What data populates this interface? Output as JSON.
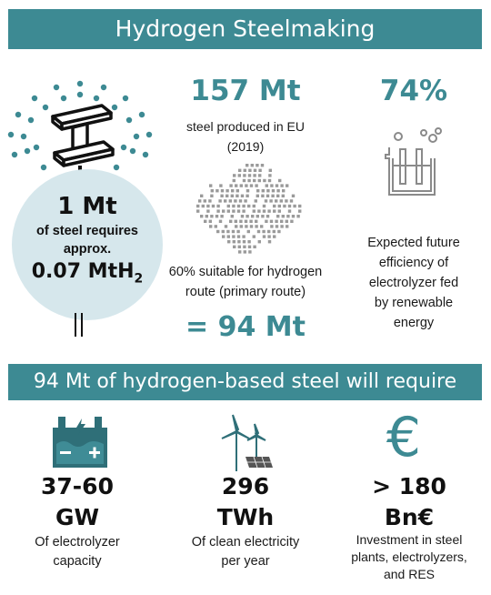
{
  "header": {
    "title": "Hydrogen Steelmaking"
  },
  "left": {
    "amount": "1 Mt",
    "line1": "of steel requires",
    "line2": "approx.",
    "h2_value": "0.07 MtH",
    "h2_sub": "2"
  },
  "middle": {
    "stat": "157 Mt",
    "desc_line1": "steel  produced in EU",
    "desc_line2": "(2019)",
    "suit_line1": "60% suitable for hydrogen",
    "suit_line2": "route (primary route)",
    "result": "= 94 Mt"
  },
  "right": {
    "stat": "74%",
    "line1": "Expected future",
    "line2": "efficiency of",
    "line3": "electrolyzer fed",
    "line4": "by renewable",
    "line5": "energy"
  },
  "section": {
    "title": "94 Mt of hydrogen-based steel will require"
  },
  "bottom": [
    {
      "value": "37-60",
      "unit": "GW",
      "line1": "Of electrolyzer",
      "line2": "capacity",
      "line3": "",
      "icon": "electrolyzer-battery-icon"
    },
    {
      "value": "296",
      "unit": "TWh",
      "line1": "Of clean electricity",
      "line2": "per year",
      "line3": "",
      "icon": "wind-turbine-solar-icon"
    },
    {
      "value": "> 180",
      "unit": "Bn€",
      "line1": "Investment in steel",
      "line2": "plants, electrolyzers,",
      "line3": "and RES",
      "icon": "euro-icon"
    }
  ],
  "colors": {
    "accent": "#3d8a93",
    "circle": "#d6e7ec"
  }
}
